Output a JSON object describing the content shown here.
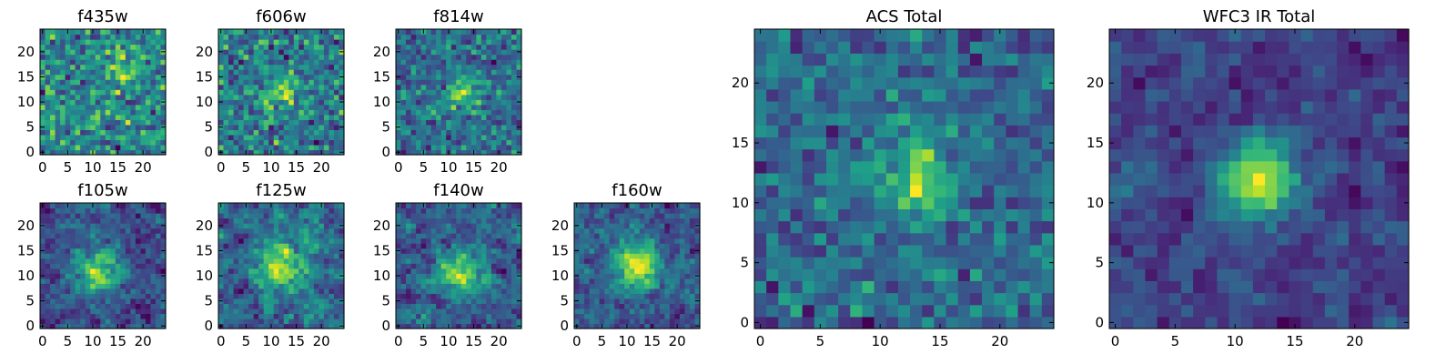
{
  "chart_data": [
    {
      "type": "heatmap",
      "title": "f435w",
      "size": 25,
      "xticks": [
        "0",
        "5",
        "10",
        "15",
        "20"
      ],
      "yticks": [
        "0",
        "5",
        "10",
        "15",
        "20"
      ],
      "seed": 11,
      "noise": 1.0,
      "blob": {
        "cx": 16,
        "cy": 16,
        "amp": 0.35,
        "sigma": 2.5
      },
      "smooth": 0
    },
    {
      "type": "heatmap",
      "title": "f606w",
      "size": 25,
      "xticks": [
        "0",
        "5",
        "10",
        "15",
        "20"
      ],
      "yticks": [
        "0",
        "5",
        "10",
        "15",
        "20"
      ],
      "seed": 23,
      "noise": 1.0,
      "blob": {
        "cx": 12,
        "cy": 12,
        "amp": 0.45,
        "sigma": 2.5
      },
      "smooth": 0
    },
    {
      "type": "heatmap",
      "title": "f814w",
      "size": 25,
      "xticks": [
        "0",
        "5",
        "10",
        "15",
        "20"
      ],
      "yticks": [
        "0",
        "5",
        "10",
        "15",
        "20"
      ],
      "seed": 37,
      "noise": 1.0,
      "blob": {
        "cx": 13,
        "cy": 12,
        "amp": 0.6,
        "sigma": 2.5
      },
      "smooth": 0
    },
    {
      "type": "heatmap",
      "title": "f105w",
      "size": 25,
      "xticks": [
        "0",
        "5",
        "10",
        "15",
        "20"
      ],
      "yticks": [
        "0",
        "5",
        "10",
        "15",
        "20"
      ],
      "seed": 41,
      "noise": 1.0,
      "blob": {
        "cx": 11,
        "cy": 11,
        "amp": 0.8,
        "sigma": 3
      },
      "smooth": 1
    },
    {
      "type": "heatmap",
      "title": "f125w",
      "size": 25,
      "xticks": [
        "0",
        "5",
        "10",
        "15",
        "20"
      ],
      "yticks": [
        "0",
        "5",
        "10",
        "15",
        "20"
      ],
      "seed": 53,
      "noise": 1.0,
      "blob": {
        "cx": 12,
        "cy": 12,
        "amp": 0.7,
        "sigma": 3
      },
      "smooth": 1
    },
    {
      "type": "heatmap",
      "title": "f140w",
      "size": 25,
      "xticks": [
        "0",
        "5",
        "10",
        "15",
        "20"
      ],
      "yticks": [
        "0",
        "5",
        "10",
        "15",
        "20"
      ],
      "seed": 67,
      "noise": 1.0,
      "blob": {
        "cx": 12,
        "cy": 11,
        "amp": 0.7,
        "sigma": 3
      },
      "smooth": 1
    },
    {
      "type": "heatmap",
      "title": "f160w",
      "size": 25,
      "xticks": [
        "0",
        "5",
        "10",
        "15",
        "20"
      ],
      "yticks": [
        "0",
        "5",
        "10",
        "15",
        "20"
      ],
      "seed": 79,
      "noise": 1.0,
      "blob": {
        "cx": 12,
        "cy": 12,
        "amp": 0.9,
        "sigma": 3
      },
      "smooth": 1
    },
    {
      "type": "heatmap",
      "title": "ACS Total",
      "size": 25,
      "xticks": [
        "0",
        "5",
        "10",
        "15",
        "20"
      ],
      "yticks": [
        "0",
        "5",
        "10",
        "15",
        "20"
      ],
      "seed": 97,
      "noise": 1.0,
      "blob": {
        "cx": 13,
        "cy": 12,
        "amp": 0.9,
        "sigma": 2.2
      },
      "smooth": 0
    },
    {
      "type": "heatmap",
      "title": "WFC3 IR Total",
      "size": 25,
      "xticks": [
        "0",
        "5",
        "10",
        "15",
        "20"
      ],
      "yticks": [
        "0",
        "5",
        "10",
        "15",
        "20"
      ],
      "seed": 101,
      "noise": 0.9,
      "blob": {
        "cx": 12,
        "cy": 12,
        "amp": 1.3,
        "sigma": 2.2
      },
      "smooth": 1
    }
  ],
  "colormap": [
    "#440154",
    "#482878",
    "#3e4a89",
    "#31688e",
    "#26828e",
    "#1f9e89",
    "#35b779",
    "#6ece58",
    "#b5de2b",
    "#fde725"
  ]
}
